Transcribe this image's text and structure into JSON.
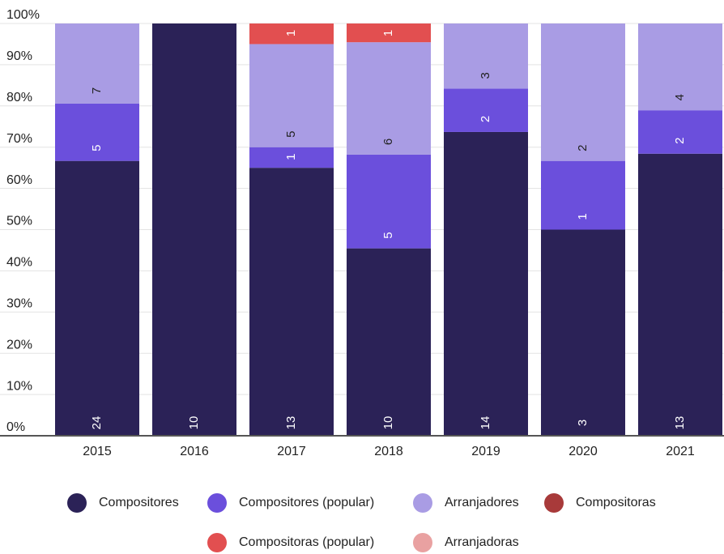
{
  "chart_data": {
    "type": "percent_stacked_bar",
    "categories": [
      "2015",
      "2016",
      "2017",
      "2018",
      "2019",
      "2020",
      "2021"
    ],
    "series": [
      {
        "name": "Compositores",
        "color": "#2b2257",
        "values": [
          24,
          10,
          13,
          10,
          14,
          3,
          13
        ]
      },
      {
        "name": "Compositores (popular)",
        "color": "#6b4fdc",
        "values": [
          5,
          null,
          1,
          5,
          2,
          1,
          2
        ]
      },
      {
        "name": "Arranjadores",
        "color": "#a99ce4",
        "values": [
          7,
          null,
          5,
          6,
          3,
          2,
          4
        ]
      },
      {
        "name": "Compositoras",
        "color": "#a83a3a",
        "values": [
          null,
          null,
          null,
          null,
          null,
          null,
          null
        ]
      },
      {
        "name": "Compositoras (popular)",
        "color": "#e24f50",
        "values": [
          null,
          null,
          1,
          1,
          null,
          null,
          null
        ]
      },
      {
        "name": "Arranjadoras",
        "color": "#e9a1a1",
        "values": [
          null,
          null,
          null,
          null,
          null,
          null,
          null
        ]
      }
    ],
    "ylim": [
      0,
      100
    ],
    "yticks": [
      {
        "value": 0,
        "label": "0%"
      },
      {
        "value": 10,
        "label": "10%"
      },
      {
        "value": 20,
        "label": "20%"
      },
      {
        "value": 30,
        "label": "30%"
      },
      {
        "value": 40,
        "label": "40%"
      },
      {
        "value": 50,
        "label": "50%"
      },
      {
        "value": 60,
        "label": "60%"
      },
      {
        "value": 70,
        "label": "70%"
      },
      {
        "value": 80,
        "label": "80%"
      },
      {
        "value": 90,
        "label": "90%"
      },
      {
        "value": 100,
        "label": "100%"
      }
    ],
    "grid": true
  }
}
